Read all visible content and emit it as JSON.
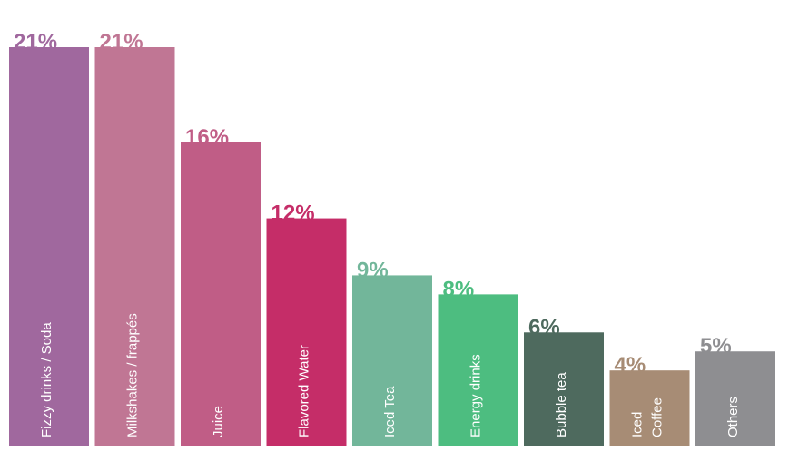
{
  "chart_data": {
    "type": "bar",
    "title": "",
    "xlabel": "",
    "ylabel": "",
    "ylim": [
      0,
      21
    ],
    "grid": false,
    "legend": "none",
    "categories": [
      "Fizzy drinks / Soda",
      "Milkshakes / frappés",
      "Juice",
      "Flavored Water",
      "Iced Tea",
      "Energy drinks",
      "Bubble tea",
      "Iced Coffee",
      "Others"
    ],
    "category_lines": [
      [
        "Fizzy drinks / Soda"
      ],
      [
        "Milkshakes / frappés"
      ],
      [
        "Juice"
      ],
      [
        "Flavored Water"
      ],
      [
        "Iced Tea"
      ],
      [
        "Energy drinks"
      ],
      [
        "Bubble tea"
      ],
      [
        "Iced",
        "Coffee"
      ],
      [
        "Others"
      ]
    ],
    "values": [
      21,
      21,
      16,
      12,
      9,
      8,
      6,
      4,
      5
    ],
    "value_labels": [
      "21%",
      "21%",
      "16%",
      "12%",
      "9%",
      "8%",
      "6%",
      "4%",
      "5%"
    ],
    "colors": [
      "#a0689e",
      "#c07694",
      "#c05d86",
      "#c52d68",
      "#72b69a",
      "#4dbd80",
      "#4e6a5e",
      "#a78c75",
      "#8e8e91"
    ]
  }
}
